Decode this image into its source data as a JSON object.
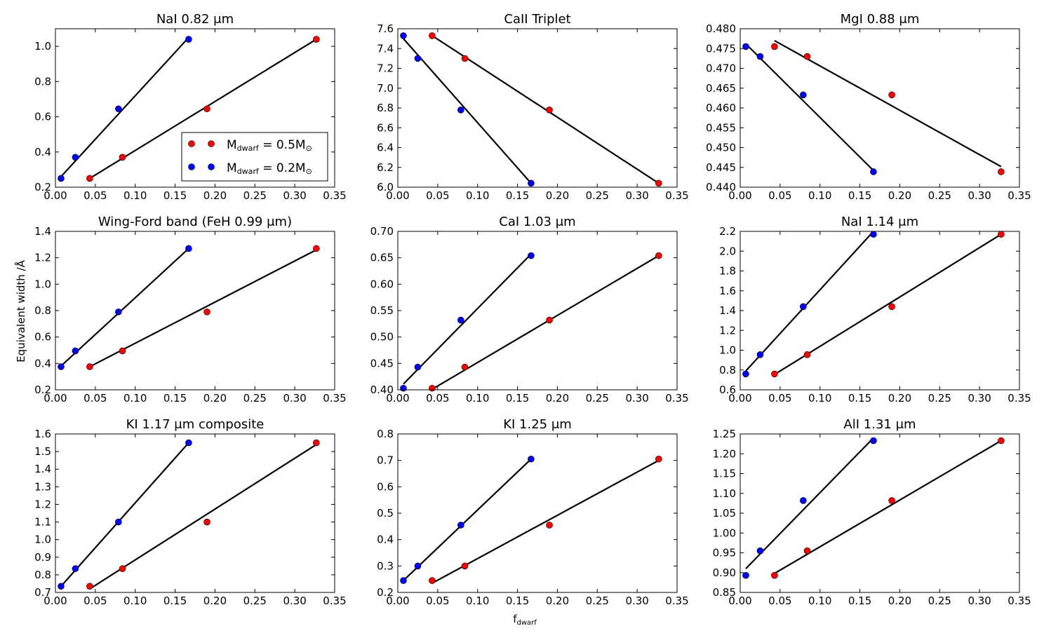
{
  "figure": {
    "ylabel": "Equivalent width /Å",
    "xlabel": "f",
    "xlabel_sub": "dwarf",
    "legend": [
      {
        "label": "M",
        "sub": "dwarf",
        "rest": " = 0.5M",
        "sym": "⊙",
        "color": "#ff0000"
      },
      {
        "label": "M",
        "sub": "dwarf",
        "rest": " = 0.2M",
        "sym": "⊙",
        "color": "#0000ff"
      }
    ]
  },
  "chart_data": [
    {
      "type": "scatter",
      "title": "NaI 0.82 μm",
      "xlim": [
        0,
        0.35
      ],
      "ylim": [
        0.2,
        1.1
      ],
      "yticks": [
        "0.2",
        "0.4",
        "0.6",
        "0.8",
        "1.0"
      ],
      "ytick_vals": [
        0.2,
        0.4,
        0.6,
        0.8,
        1.0
      ],
      "series": [
        {
          "name": "M_dwarf = 0.5M_sun",
          "color": "#ff0000",
          "x": [
            0.043,
            0.084,
            0.19,
            0.327
          ],
          "y": [
            0.25,
            0.37,
            0.645,
            1.04
          ],
          "fit": [
            [
              0.043,
              0.25
            ],
            [
              0.327,
              1.04
            ]
          ]
        },
        {
          "name": "M_dwarf = 0.2M_sun",
          "color": "#0000ff",
          "x": [
            0.007,
            0.025,
            0.079,
            0.167
          ],
          "y": [
            0.25,
            0.37,
            0.645,
            1.04
          ],
          "fit": [
            [
              0.007,
              0.26
            ],
            [
              0.167,
              1.05
            ]
          ]
        }
      ]
    },
    {
      "type": "scatter",
      "title": "CaII Triplet",
      "xlim": [
        0,
        0.35
      ],
      "ylim": [
        6.0,
        7.6
      ],
      "yticks": [
        "6.0",
        "6.2",
        "6.4",
        "6.6",
        "6.8",
        "7.0",
        "7.2",
        "7.4",
        "7.6"
      ],
      "ytick_vals": [
        6.0,
        6.2,
        6.4,
        6.6,
        6.8,
        7.0,
        7.2,
        7.4,
        7.6
      ],
      "series": [
        {
          "name": "M_dwarf = 0.5M_sun",
          "color": "#ff0000",
          "x": [
            0.043,
            0.084,
            0.19,
            0.327
          ],
          "y": [
            7.53,
            7.3,
            6.78,
            6.04
          ],
          "fit": [
            [
              0.043,
              7.53
            ],
            [
              0.327,
              6.04
            ]
          ]
        },
        {
          "name": "M_dwarf = 0.2M_sun",
          "color": "#0000ff",
          "x": [
            0.007,
            0.025,
            0.079,
            0.167
          ],
          "y": [
            7.53,
            7.3,
            6.78,
            6.04
          ],
          "fit": [
            [
              0.007,
              7.5
            ],
            [
              0.167,
              6.04
            ]
          ]
        }
      ]
    },
    {
      "type": "scatter",
      "title": "MgI 0.88 μm",
      "xlim": [
        0,
        0.35
      ],
      "ylim": [
        0.44,
        0.48
      ],
      "yticks": [
        "0.440",
        "0.445",
        "0.450",
        "0.455",
        "0.460",
        "0.465",
        "0.470",
        "0.475",
        "0.480"
      ],
      "ytick_vals": [
        0.44,
        0.445,
        0.45,
        0.455,
        0.46,
        0.465,
        0.47,
        0.475,
        0.48
      ],
      "series": [
        {
          "name": "M_dwarf = 0.5M_sun",
          "color": "#ff0000",
          "x": [
            0.043,
            0.084,
            0.19,
            0.327
          ],
          "y": [
            0.4755,
            0.473,
            0.4633,
            0.4439
          ],
          "fit": [
            [
              0.043,
              0.477
            ],
            [
              0.327,
              0.4452
            ]
          ]
        },
        {
          "name": "M_dwarf = 0.2M_sun",
          "color": "#0000ff",
          "x": [
            0.007,
            0.025,
            0.079,
            0.167
          ],
          "y": [
            0.4755,
            0.473,
            0.4633,
            0.4439
          ],
          "fit": [
            [
              0.007,
              0.4762
            ],
            [
              0.167,
              0.4442
            ]
          ]
        }
      ]
    },
    {
      "type": "scatter",
      "title": "Wing-Ford band (FeH 0.99 μm)",
      "xlim": [
        0,
        0.35
      ],
      "ylim": [
        0.2,
        1.4
      ],
      "yticks": [
        "0.2",
        "0.4",
        "0.6",
        "0.8",
        "1.0",
        "1.2",
        "1.4"
      ],
      "ytick_vals": [
        0.2,
        0.4,
        0.6,
        0.8,
        1.0,
        1.2,
        1.4
      ],
      "series": [
        {
          "name": "M_dwarf = 0.5M_sun",
          "color": "#ff0000",
          "x": [
            0.043,
            0.084,
            0.19,
            0.327
          ],
          "y": [
            0.375,
            0.495,
            0.79,
            1.27
          ],
          "fit": [
            [
              0.043,
              0.375
            ],
            [
              0.327,
              1.26
            ]
          ]
        },
        {
          "name": "M_dwarf = 0.2M_sun",
          "color": "#0000ff",
          "x": [
            0.007,
            0.025,
            0.079,
            0.167
          ],
          "y": [
            0.375,
            0.495,
            0.79,
            1.27
          ],
          "fit": [
            [
              0.007,
              0.38
            ],
            [
              0.167,
              1.27
            ]
          ]
        }
      ]
    },
    {
      "type": "scatter",
      "title": "CaI 1.03 μm",
      "xlim": [
        0,
        0.35
      ],
      "ylim": [
        0.4,
        0.7
      ],
      "yticks": [
        "0.40",
        "0.45",
        "0.50",
        "0.55",
        "0.60",
        "0.65",
        "0.70"
      ],
      "ytick_vals": [
        0.4,
        0.45,
        0.5,
        0.55,
        0.6,
        0.65,
        0.7
      ],
      "series": [
        {
          "name": "M_dwarf = 0.5M_sun",
          "color": "#ff0000",
          "x": [
            0.043,
            0.084,
            0.19,
            0.327
          ],
          "y": [
            0.403,
            0.443,
            0.532,
            0.654
          ],
          "fit": [
            [
              0.043,
              0.401
            ],
            [
              0.327,
              0.654
            ]
          ]
        },
        {
          "name": "M_dwarf = 0.2M_sun",
          "color": "#0000ff",
          "x": [
            0.007,
            0.025,
            0.079,
            0.167
          ],
          "y": [
            0.403,
            0.443,
            0.532,
            0.654
          ],
          "fit": [
            [
              0.007,
              0.411
            ],
            [
              0.167,
              0.657
            ]
          ]
        }
      ]
    },
    {
      "type": "scatter",
      "title": "NaI 1.14 μm",
      "xlim": [
        0,
        0.35
      ],
      "ylim": [
        0.6,
        2.2
      ],
      "yticks": [
        "0.6",
        "0.8",
        "1.0",
        "1.2",
        "1.4",
        "1.6",
        "1.8",
        "2.0",
        "2.2"
      ],
      "ytick_vals": [
        0.6,
        0.8,
        1.0,
        1.2,
        1.4,
        1.6,
        1.8,
        2.0,
        2.2
      ],
      "series": [
        {
          "name": "M_dwarf = 0.5M_sun",
          "color": "#ff0000",
          "x": [
            0.043,
            0.084,
            0.19,
            0.327
          ],
          "y": [
            0.76,
            0.955,
            1.44,
            2.17
          ],
          "fit": [
            [
              0.043,
              0.755
            ],
            [
              0.327,
              2.17
            ]
          ]
        },
        {
          "name": "M_dwarf = 0.2M_sun",
          "color": "#0000ff",
          "x": [
            0.007,
            0.025,
            0.079,
            0.167
          ],
          "y": [
            0.76,
            0.955,
            1.44,
            2.17
          ],
          "fit": [
            [
              0.007,
              0.79
            ],
            [
              0.167,
              2.2
            ]
          ]
        }
      ]
    },
    {
      "type": "scatter",
      "title": "KI 1.17 μm composite",
      "xlim": [
        0,
        0.35
      ],
      "ylim": [
        0.7,
        1.6
      ],
      "yticks": [
        "0.7",
        "0.8",
        "0.9",
        "1.0",
        "1.1",
        "1.2",
        "1.3",
        "1.4",
        "1.5",
        "1.6"
      ],
      "ytick_vals": [
        0.7,
        0.8,
        0.9,
        1.0,
        1.1,
        1.2,
        1.3,
        1.4,
        1.5,
        1.6
      ],
      "series": [
        {
          "name": "M_dwarf = 0.5M_sun",
          "color": "#ff0000",
          "x": [
            0.043,
            0.084,
            0.19,
            0.327
          ],
          "y": [
            0.735,
            0.835,
            1.1,
            1.55
          ],
          "fit": [
            [
              0.043,
              0.72
            ],
            [
              0.327,
              1.54
            ]
          ]
        },
        {
          "name": "M_dwarf = 0.2M_sun",
          "color": "#0000ff",
          "x": [
            0.007,
            0.025,
            0.079,
            0.167
          ],
          "y": [
            0.735,
            0.835,
            1.1,
            1.55
          ],
          "fit": [
            [
              0.007,
              0.735
            ],
            [
              0.167,
              1.55
            ]
          ]
        }
      ]
    },
    {
      "type": "scatter",
      "title": "KI 1.25 μm",
      "xlim": [
        0,
        0.35
      ],
      "ylim": [
        0.2,
        0.8
      ],
      "yticks": [
        "0.2",
        "0.3",
        "0.4",
        "0.5",
        "0.6",
        "0.7",
        "0.8"
      ],
      "ytick_vals": [
        0.2,
        0.3,
        0.4,
        0.5,
        0.6,
        0.7,
        0.8
      ],
      "series": [
        {
          "name": "M_dwarf = 0.5M_sun",
          "color": "#ff0000",
          "x": [
            0.043,
            0.084,
            0.19,
            0.327
          ],
          "y": [
            0.245,
            0.3,
            0.455,
            0.705
          ],
          "fit": [
            [
              0.043,
              0.235
            ],
            [
              0.327,
              0.7
            ]
          ]
        },
        {
          "name": "M_dwarf = 0.2M_sun",
          "color": "#0000ff",
          "x": [
            0.007,
            0.025,
            0.079,
            0.167
          ],
          "y": [
            0.245,
            0.3,
            0.455,
            0.705
          ],
          "fit": [
            [
              0.007,
              0.245
            ],
            [
              0.167,
              0.705
            ]
          ]
        }
      ]
    },
    {
      "type": "scatter",
      "title": "AlI 1.31 μm",
      "xlim": [
        0,
        0.35
      ],
      "ylim": [
        0.85,
        1.25
      ],
      "yticks": [
        "0.85",
        "0.90",
        "0.95",
        "1.00",
        "1.05",
        "1.10",
        "1.15",
        "1.20",
        "1.25"
      ],
      "ytick_vals": [
        0.85,
        0.9,
        0.95,
        1.0,
        1.05,
        1.1,
        1.15,
        1.2,
        1.25
      ],
      "series": [
        {
          "name": "M_dwarf = 0.5M_sun",
          "color": "#ff0000",
          "x": [
            0.043,
            0.084,
            0.19,
            0.327
          ],
          "y": [
            0.893,
            0.955,
            1.082,
            1.233
          ],
          "fit": [
            [
              0.043,
              0.898
            ],
            [
              0.327,
              1.233
            ]
          ]
        },
        {
          "name": "M_dwarf = 0.2M_sun",
          "color": "#0000ff",
          "x": [
            0.007,
            0.025,
            0.079,
            0.167
          ],
          "y": [
            0.893,
            0.955,
            1.082,
            1.233
          ],
          "fit": [
            [
              0.007,
              0.91
            ],
            [
              0.167,
              1.24
            ]
          ]
        }
      ]
    }
  ],
  "xticks": [
    "0.00",
    "0.05",
    "0.10",
    "0.15",
    "0.20",
    "0.25",
    "0.30",
    "0.35"
  ],
  "xtick_vals": [
    0,
    0.05,
    0.1,
    0.15,
    0.2,
    0.25,
    0.3,
    0.35
  ]
}
